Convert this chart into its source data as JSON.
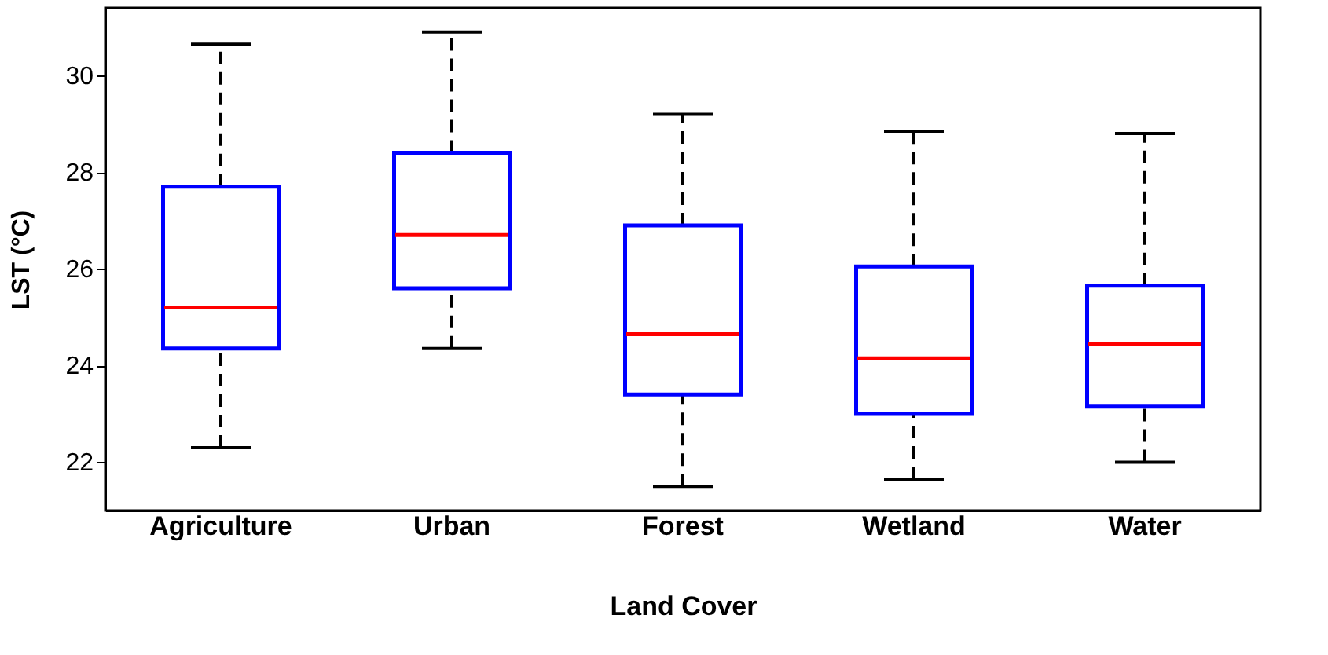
{
  "chart_data": {
    "type": "box",
    "xlabel": "Land Cover",
    "ylabel": "LST (°C)",
    "categories": [
      "Agriculture",
      "Urban",
      "Forest",
      "Wetland",
      "Water"
    ],
    "boxes": [
      {
        "low": 22.3,
        "q1": 24.35,
        "median": 25.2,
        "q3": 27.7,
        "high": 30.65
      },
      {
        "low": 24.35,
        "q1": 25.6,
        "median": 26.7,
        "q3": 28.4,
        "high": 30.9
      },
      {
        "low": 21.5,
        "q1": 23.4,
        "median": 24.65,
        "q3": 26.9,
        "high": 29.2
      },
      {
        "low": 21.65,
        "q1": 23.0,
        "median": 24.15,
        "q3": 26.05,
        "high": 28.85
      },
      {
        "low": 22.0,
        "q1": 23.15,
        "median": 24.45,
        "q3": 25.65,
        "high": 28.8
      }
    ],
    "ylim": [
      21,
      31.4
    ],
    "yticks": [
      22,
      24,
      26,
      28,
      30
    ],
    "grid": false,
    "line_style": "dashed"
  }
}
